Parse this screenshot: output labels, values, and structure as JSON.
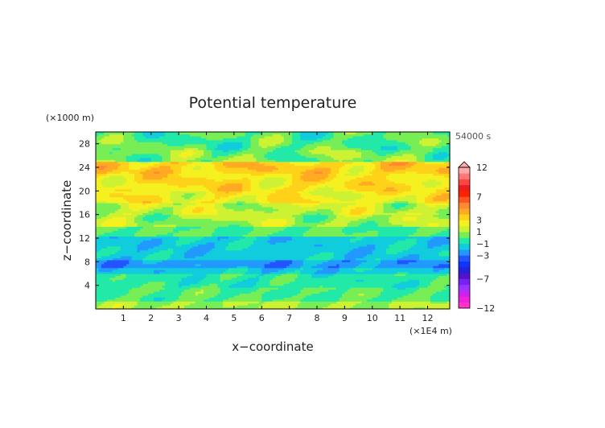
{
  "chart_data": {
    "type": "heatmap",
    "title": "Potential temperature",
    "xlabel": "x−coordinate",
    "ylabel": "z−coordinate",
    "x_unit": "(×1E4 m)",
    "y_unit": "(×1000 m)",
    "time_label": "54000 s",
    "xlim": [
      0,
      12.8
    ],
    "ylim": [
      0,
      30
    ],
    "x_ticks": [
      1,
      2,
      3,
      4,
      5,
      6,
      7,
      8,
      9,
      10,
      11,
      12
    ],
    "y_ticks": [
      4,
      8,
      12,
      16,
      20,
      24,
      28
    ],
    "colorbar": {
      "levels": [
        -12,
        -11,
        -10,
        -9,
        -8,
        -7,
        -6,
        -5,
        -4,
        -3,
        -2,
        -1,
        0,
        1,
        2,
        3,
        4,
        5,
        6,
        7,
        8,
        9,
        10,
        11,
        12
      ],
      "colors": [
        "#ff33cc",
        "#ee22dd",
        "#cc22ee",
        "#9933ff",
        "#7722ee",
        "#5511cc",
        "#2222dd",
        "#1133ff",
        "#2255ff",
        "#2299ff",
        "#11ccdd",
        "#22e8a8",
        "#77ee55",
        "#ccf233",
        "#f5f020",
        "#ffd21a",
        "#ffaa22",
        "#ff8833",
        "#ff5522",
        "#ff2200",
        "#e91e1e",
        "#ff4444",
        "#ff7777",
        "#ffaaaa"
      ],
      "tick_labels": [
        "12",
        "7",
        "3",
        "1",
        "−1",
        "−3",
        "−7",
        "−12"
      ]
    },
    "bands": [
      {
        "z": [
          0,
          1.2
        ],
        "value": 1
      },
      {
        "z": [
          1.2,
          3.6
        ],
        "value": 0
      },
      {
        "z": [
          3.6,
          6.0
        ],
        "value": -0.5
      },
      {
        "z": [
          6.0,
          7.0
        ],
        "value": -1.5
      },
      {
        "z": [
          7.0,
          8.3
        ],
        "value": -2.5
      },
      {
        "z": [
          8.3,
          12.5
        ],
        "value": -1.5
      },
      {
        "z": [
          12.5,
          14.0
        ],
        "value": 0
      },
      {
        "z": [
          14.0,
          16.0
        ],
        "value": 1
      },
      {
        "z": [
          16.0,
          18.0
        ],
        "value": 1.5
      },
      {
        "z": [
          18.0,
          20.0
        ],
        "value": 2.5
      },
      {
        "z": [
          20.0,
          23.0
        ],
        "value": 3
      },
      {
        "z": [
          23.0,
          25.0
        ],
        "value": 3.5
      },
      {
        "z": [
          25.0,
          27.0
        ],
        "value": 0.5
      },
      {
        "z": [
          27.0,
          30.0
        ],
        "value": 0
      }
    ]
  }
}
